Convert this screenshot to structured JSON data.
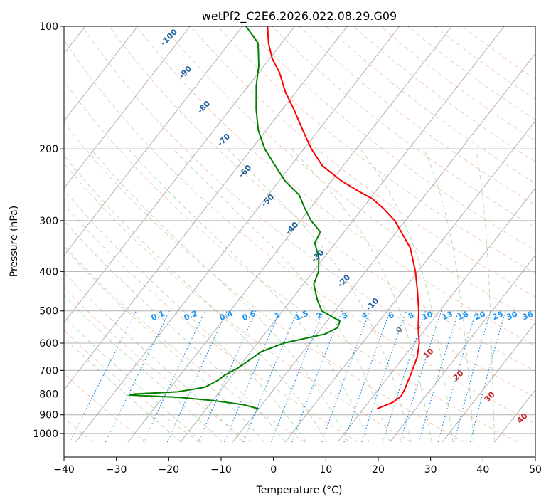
{
  "chart_data": {
    "type": "line",
    "subtype": "skew-T log-P diagram",
    "title": "wetPf2_C2E6.2026.022.08.29.G09",
    "xlabel": "Temperature (°C)",
    "ylabel": "Pressure (hPa)",
    "xlim": [
      -40,
      50
    ],
    "ylim": [
      1050,
      100
    ],
    "y_scale": "log",
    "x_ticks": [
      "−40",
      "−30",
      "−20",
      "−10",
      "0",
      "10",
      "20",
      "30",
      "40",
      "50"
    ],
    "y_ticks": [
      "100",
      "200",
      "300",
      "400",
      "500",
      "600",
      "700",
      "800",
      "900",
      "1000"
    ],
    "grid": true,
    "series": [
      {
        "color": "#ff0000",
        "points": [
          [
            870,
            12.6
          ],
          [
            860,
            13.2
          ],
          [
            840,
            14.6
          ],
          [
            810,
            15.3
          ],
          [
            780,
            15.0
          ],
          [
            750,
            14.5
          ],
          [
            720,
            14.0
          ],
          [
            690,
            13.4
          ],
          [
            650,
            12.6
          ],
          [
            600,
            10.9
          ],
          [
            550,
            8.4
          ],
          [
            500,
            6.0
          ],
          [
            450,
            3.0
          ],
          [
            400,
            -0.5
          ],
          [
            350,
            -5.0
          ],
          [
            300,
            -12.0
          ],
          [
            280,
            -16.0
          ],
          [
            265,
            -19.6
          ],
          [
            255,
            -23.0
          ],
          [
            240,
            -28.0
          ],
          [
            220,
            -34.0
          ],
          [
            200,
            -38.6
          ],
          [
            180,
            -43.0
          ],
          [
            160,
            -47.8
          ],
          [
            145,
            -52.0
          ],
          [
            130,
            -56.0
          ],
          [
            120,
            -59.5
          ],
          [
            110,
            -62.5
          ],
          [
            100,
            -65.2
          ]
        ]
      },
      {
        "color": "#008000",
        "points": [
          [
            870,
            -10.0
          ],
          [
            850,
            -13.5
          ],
          [
            830,
            -20.0
          ],
          [
            815,
            -27.0
          ],
          [
            805,
            -36.6
          ],
          [
            800,
            -36.0
          ],
          [
            790,
            -28.0
          ],
          [
            770,
            -23.5
          ],
          [
            740,
            -22.0
          ],
          [
            720,
            -21.5
          ],
          [
            690,
            -20.0
          ],
          [
            660,
            -19.0
          ],
          [
            630,
            -18.0
          ],
          [
            600,
            -15.0
          ],
          [
            570,
            -8.5
          ],
          [
            550,
            -7.0
          ],
          [
            530,
            -7.5
          ],
          [
            500,
            -12.5
          ],
          [
            470,
            -15.0
          ],
          [
            430,
            -18.0
          ],
          [
            400,
            -19.0
          ],
          [
            370,
            -21.0
          ],
          [
            340,
            -24.0
          ],
          [
            320,
            -24.5
          ],
          [
            300,
            -28.0
          ],
          [
            280,
            -31.0
          ],
          [
            260,
            -34.0
          ],
          [
            240,
            -38.8
          ],
          [
            220,
            -43.0
          ],
          [
            200,
            -47.5
          ],
          [
            180,
            -51.5
          ],
          [
            160,
            -55.0
          ],
          [
            140,
            -58.5
          ],
          [
            125,
            -61.0
          ],
          [
            110,
            -64.5
          ],
          [
            100,
            -69.3
          ]
        ]
      }
    ],
    "dry_adiabat_labels": [
      "-100",
      "-90",
      "-80",
      "-70",
      "-60",
      "-50",
      "-40",
      "-30",
      "-20",
      "-10",
      "0",
      "10",
      "20",
      "30",
      "40"
    ],
    "mixing_ratio_labels": [
      "0.1",
      "0.2",
      "0.4",
      "0.6",
      "1",
      "1.5",
      "2",
      "3",
      "4",
      "6",
      "8",
      "10",
      "13",
      "16",
      "20",
      "25",
      "30",
      "36"
    ],
    "colors": {
      "dry_adiabat": "#f4a582",
      "moist_adiabat": "#7fbf7b",
      "mixing_ratio": "#1e88e5",
      "isotherm": "#888888",
      "cold_label": "#1f5fa0",
      "warm_label": "#c62828",
      "zero_label": "#777777",
      "mixing_label": "#2196f3"
    }
  }
}
